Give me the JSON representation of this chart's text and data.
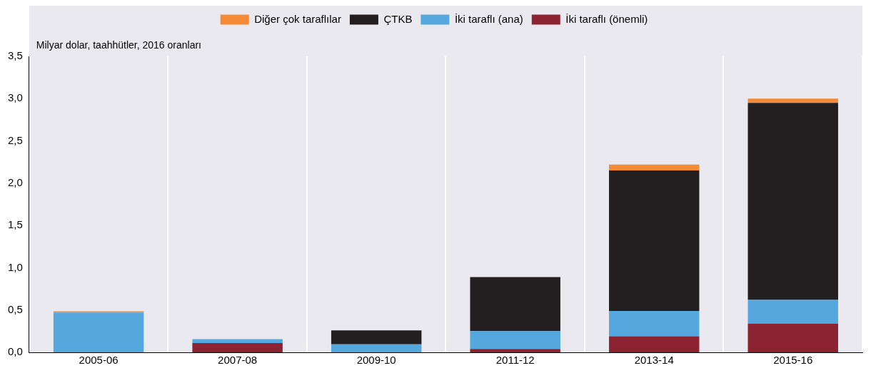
{
  "chart_data": {
    "type": "bar",
    "stacked": true,
    "ylabel": "Milyar dolar, taahhütler, 2016 oranları",
    "categories": [
      "2005-06",
      "2007-08",
      "2009-10",
      "2011-12",
      "2013-14",
      "2015-16"
    ],
    "series": [
      {
        "name": "İki taraflı (önemli)",
        "color": "#8b2332",
        "values": [
          0,
          0.11,
          0,
          0.04,
          0.19,
          0.34
        ]
      },
      {
        "name": "İki taraflı (ana)",
        "color": "#55a8de",
        "values": [
          0.47,
          0.045,
          0.095,
          0.21,
          0.3,
          0.28
        ]
      },
      {
        "name": "ÇTKB",
        "color": "#231f20",
        "values": [
          0,
          0,
          0.165,
          0.64,
          1.66,
          2.33
        ]
      },
      {
        "name": "Diğer çok taraflılar",
        "color": "#f58b37",
        "values": [
          0.015,
          0,
          0,
          0,
          0.07,
          0.05
        ]
      }
    ],
    "ylim": [
      0,
      3.5
    ],
    "yticks": [
      {
        "value": 0,
        "label": "0,0"
      },
      {
        "value": 0.5,
        "label": "0,5"
      },
      {
        "value": 1,
        "label": "1,0"
      },
      {
        "value": 1.5,
        "label": "1,5"
      },
      {
        "value": 2,
        "label": "2,0"
      },
      {
        "value": 2.5,
        "label": "2,5"
      },
      {
        "value": 3,
        "label": "3,0"
      },
      {
        "value": 3.5,
        "label": "3,5"
      }
    ],
    "grid": "x",
    "legend": "top"
  }
}
